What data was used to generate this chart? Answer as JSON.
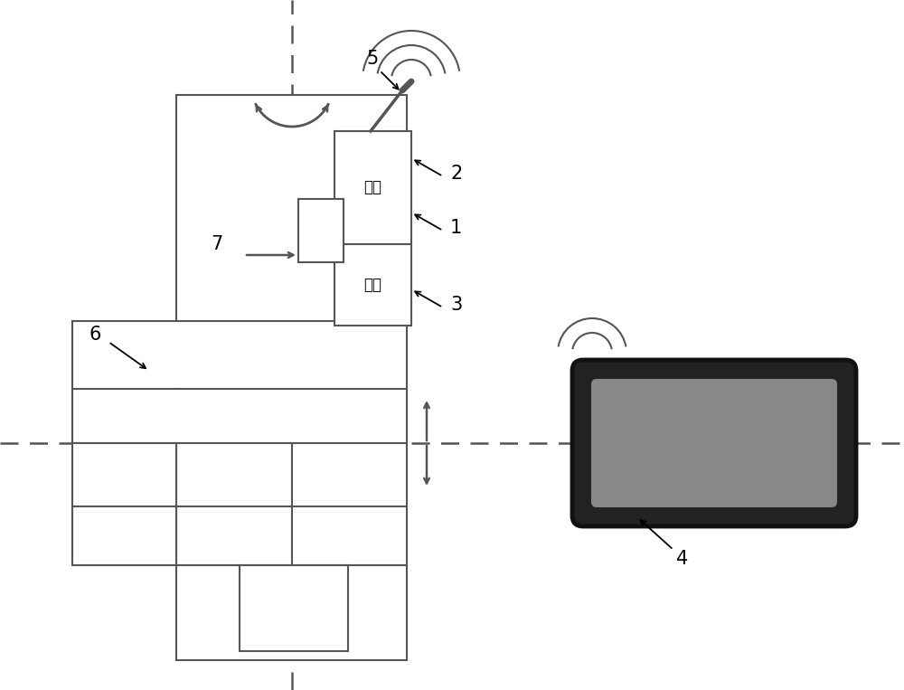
{
  "bg_color": "#ffffff",
  "line_color": "#555555",
  "dashed_color": "#555555",
  "comm_text": "通信",
  "power_text": "电源"
}
